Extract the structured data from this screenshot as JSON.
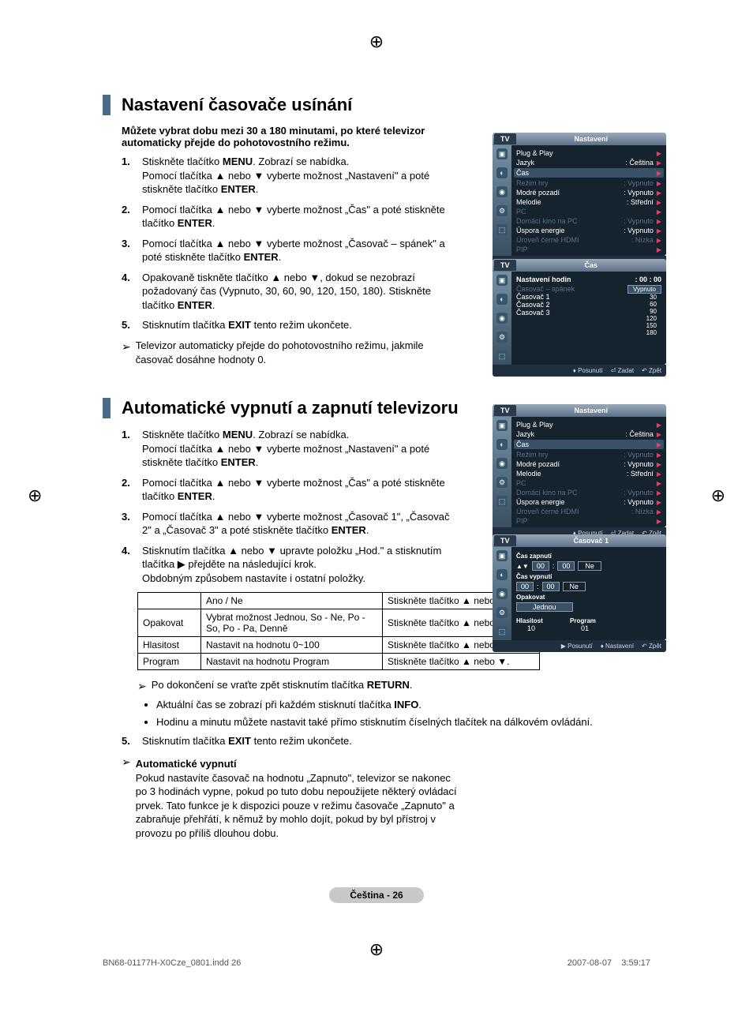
{
  "crosshair_glyph": "⊕",
  "section1": {
    "title": "Nastavení časovače usínání",
    "lead": "Můžete vybrat dobu mezi 30 a 180 minutami, po které televizor automaticky přejde do pohotovostního režimu.",
    "steps": [
      "Stiskněte tlačítko <b>MENU</b>. Zobrazí se nabídka.<br>Pomocí tlačítka ▲ nebo ▼ vyberte možnost „Nastavení\" a poté stiskněte tlačítko <b>ENTER</b>.",
      "Pomocí tlačítka ▲ nebo ▼ vyberte možnost „Čas\" a poté stiskněte tlačítko <b>ENTER</b>.",
      "Pomocí tlačítka ▲ nebo ▼ vyberte možnost „Časovač – spánek\" a poté stiskněte tlačítko <b>ENTER</b>.",
      "Opakovaně tiskněte tlačítko ▲ nebo ▼, dokud se nezobrazí požadovaný čas (Vypnuto, 30, 60, 90, 120, 150, 180). Stiskněte tlačítko <b>ENTER</b>.",
      "Stisknutím tlačítka <b>EXIT</b> tento režim ukončete."
    ],
    "note": "Televizor automaticky přejde do pohotovostního režimu, jakmile časovač dosáhne hodnoty 0."
  },
  "section2": {
    "title": "Automatické vypnutí a zapnutí televizoru",
    "steps": [
      "Stiskněte tlačítko <b>MENU</b>. Zobrazí se nabídka.<br>Pomocí tlačítka ▲ nebo ▼ vyberte možnost „Nastavení\" a poté stiskněte tlačítko <b>ENTER</b>.",
      "Pomocí tlačítka ▲ nebo ▼ vyberte možnost „Čas\" a poté stiskněte tlačítko <b>ENTER</b>.",
      "Pomocí tlačítka ▲ nebo ▼ vyberte možnost „Časovač 1\", „Časovač 2\" a „Časovač 3\" a poté stiskněte tlačítko <b>ENTER</b>.",
      "Stisknutím tlačítka ▲ nebo ▼ upravte položku „Hod.\" a stisknutím tlačítka ▶ přejděte na následující krok.<br>Obdobným způsobem nastavíte i ostatní položky."
    ],
    "table": [
      [
        "",
        "Ano / Ne",
        "Stiskněte tlačítko ▲ nebo ▼."
      ],
      [
        "Opakovat",
        "Vybrat možnost Jednou, So - Ne, Po - So, Po - Pa, Denně",
        "Stiskněte tlačítko ▲ nebo ▼."
      ],
      [
        "Hlasitost",
        "Nastavit na hodnotu 0~100",
        "Stiskněte tlačítko ▲ nebo ▼."
      ],
      [
        "Program",
        "Nastavit na hodnotu Program",
        "Stiskněte tlačítko ▲ nebo ▼."
      ]
    ],
    "after_table_note": "Po dokončení se vraťte zpět stisknutím tlačítka <b>RETURN</b>.",
    "bullets": [
      "Aktuální čas se zobrazí při každém stisknutí tlačítka <b>INFO</b>.",
      "Hodinu a minutu můžete nastavit také přímo stisknutím číselných tlačítek na dálkovém ovládání."
    ],
    "step5": "Stisknutím tlačítka <b>EXIT</b> tento režim ukončete.",
    "auto_off_title": "Automatické vypnutí",
    "auto_off_body": "Pokud nastavíte časovač na hodnotu „Zapnuto\", televizor se nakonec po 3 hodinách vypne, pokud po tuto dobu nepoužijete některý ovládací prvek. Tato funkce je k dispozici pouze v režimu časovače „Zapnuto\" a zabraňuje přehřátí, k němuž by mohlo dojít, pokud by byl přístroj v provozu po příliš dlouhou dobu."
  },
  "tv_common": {
    "tab": "TV",
    "footer_move": "Posunutí",
    "footer_enter": "Zadat",
    "footer_back": "Zpět",
    "footer_adjust": "Nastavení"
  },
  "panel_nastaveni": {
    "title": "Nastavení",
    "rows": [
      {
        "lbl": "Plug & Play",
        "val": "",
        "dim": false
      },
      {
        "lbl": "Jazyk",
        "val": ": Čeština",
        "dim": false
      },
      {
        "lbl": "Čas",
        "val": "",
        "dim": false,
        "boxed": true
      },
      {
        "lbl": "Režim hry",
        "val": ": Vypnuto",
        "dim": true
      },
      {
        "lbl": "Modré pozadí",
        "val": ": Vypnuto",
        "dim": false
      },
      {
        "lbl": "Melodie",
        "val": ": Střední",
        "dim": false
      },
      {
        "lbl": "PC",
        "val": "",
        "dim": true
      },
      {
        "lbl": "Domácí kino na PC",
        "val": ": Vypnuto",
        "dim": true
      },
      {
        "lbl": "Úspora energie",
        "val": ": Vypnuto",
        "dim": false
      },
      {
        "lbl": "Úroveň černé HDMI",
        "val": ": Nízká",
        "dim": true
      },
      {
        "lbl": "PIP",
        "val": "",
        "dim": true
      }
    ]
  },
  "panel_cas": {
    "title": "Čas",
    "clock_lbl": "Nastavení hodin",
    "clock_val": ": 00 : 00",
    "sleep_lbl": "Časovač – spánek",
    "timer_labels": [
      "Časovač 1",
      "Časovač 2",
      "Časovač 3"
    ],
    "options": [
      "Vypnuto",
      "30",
      "60",
      "90",
      "120",
      "150",
      "180"
    ]
  },
  "panel_nastaveni2_highlight": "Čas",
  "panel_casovac1": {
    "title": "Časovač 1",
    "on_lbl": "Čas zapnutí",
    "off_lbl": "Čas vypnutí",
    "h": "00",
    "m": "00",
    "ne": "Ne",
    "repeat_lbl": "Opakovat",
    "repeat_val": "Jednou",
    "vol_lbl": "Hlasitost",
    "vol_val": "10",
    "prog_lbl": "Program",
    "prog_val": "01"
  },
  "page_number": "Čeština - 26",
  "footer_left": "BN68-01177H-X0Cze_0801.indd   26",
  "footer_right": "2007-08-07      3:59:17"
}
